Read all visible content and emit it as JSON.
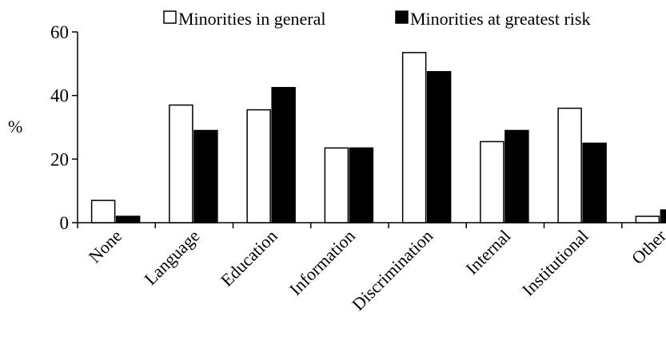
{
  "chart_data": {
    "type": "bar",
    "ylabel": "%",
    "ylim": [
      0,
      60
    ],
    "yticks": [
      0,
      20,
      40,
      60
    ],
    "categories": [
      "None",
      "Language",
      "Education",
      "Information",
      "Discrimination",
      "Internal",
      "Institutional",
      "Other"
    ],
    "series": [
      {
        "name": "Minorities in general",
        "fill": "#ffffff",
        "values": [
          7,
          37,
          35.5,
          23.5,
          53.5,
          25.5,
          36,
          2
        ]
      },
      {
        "name": "Minorities at greatest risk",
        "fill": "#000000",
        "values": [
          2,
          29,
          42.5,
          23.5,
          47.5,
          29,
          25,
          4
        ]
      }
    ],
    "grid": false,
    "legend_position": "top"
  }
}
